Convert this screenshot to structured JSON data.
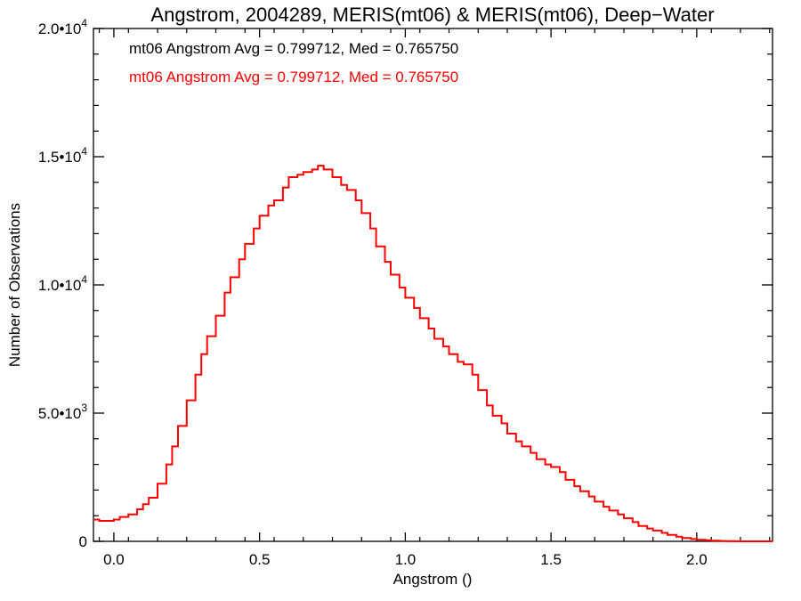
{
  "chart_data": {
    "type": "line",
    "title": "Angstrom, 2004289, MERIS(mt06) & MERIS(mt06), Deep−Water",
    "xlabel": "Angstrom ()",
    "ylabel": "Number of Observations",
    "xlim": [
      -0.07,
      2.26
    ],
    "ylim": [
      0,
      20000
    ],
    "x_ticks": [
      {
        "value": 0.0,
        "label": "0.0"
      },
      {
        "value": 0.5,
        "label": "0.5"
      },
      {
        "value": 1.0,
        "label": "1.0"
      },
      {
        "value": 1.5,
        "label": "1.5"
      },
      {
        "value": 2.0,
        "label": "2.0"
      }
    ],
    "y_ticks": [
      {
        "value": 0,
        "mantissa": "0",
        "exp": ""
      },
      {
        "value": 5000,
        "mantissa": "5.0•10",
        "exp": "3"
      },
      {
        "value": 10000,
        "mantissa": "1.0•10",
        "exp": "4"
      },
      {
        "value": 15000,
        "mantissa": "1.5•10",
        "exp": "4"
      },
      {
        "value": 20000,
        "mantissa": "2.0•10",
        "exp": "4"
      }
    ],
    "annotations": [
      {
        "text": "mt06 Angstrom Avg = 0.799712, Med = 0.765750",
        "color": "#000000"
      },
      {
        "text": "mt06 Angstrom Avg = 0.799712, Med = 0.765750",
        "color": "#ff0000"
      }
    ],
    "series": [
      {
        "style": "histogram-step",
        "color": "#ff0000",
        "points": [
          [
            -0.07,
            850
          ],
          [
            -0.05,
            800
          ],
          [
            0.0,
            850
          ],
          [
            0.02,
            950
          ],
          [
            0.05,
            1050
          ],
          [
            0.08,
            1250
          ],
          [
            0.1,
            1450
          ],
          [
            0.12,
            1700
          ],
          [
            0.15,
            2250
          ],
          [
            0.18,
            3000
          ],
          [
            0.2,
            3700
          ],
          [
            0.22,
            4500
          ],
          [
            0.25,
            5500
          ],
          [
            0.28,
            6500
          ],
          [
            0.3,
            7300
          ],
          [
            0.32,
            8000
          ],
          [
            0.35,
            8800
          ],
          [
            0.38,
            9700
          ],
          [
            0.4,
            10300
          ],
          [
            0.43,
            11000
          ],
          [
            0.45,
            11600
          ],
          [
            0.48,
            12200
          ],
          [
            0.5,
            12700
          ],
          [
            0.53,
            13100
          ],
          [
            0.55,
            13300
          ],
          [
            0.58,
            13800
          ],
          [
            0.6,
            14200
          ],
          [
            0.63,
            14300
          ],
          [
            0.65,
            14400
          ],
          [
            0.68,
            14500
          ],
          [
            0.7,
            14650
          ],
          [
            0.72,
            14500
          ],
          [
            0.75,
            14200
          ],
          [
            0.78,
            13900
          ],
          [
            0.8,
            13700
          ],
          [
            0.83,
            13300
          ],
          [
            0.85,
            12800
          ],
          [
            0.88,
            12200
          ],
          [
            0.9,
            11500
          ],
          [
            0.93,
            10900
          ],
          [
            0.95,
            10400
          ],
          [
            0.98,
            9900
          ],
          [
            1.0,
            9500
          ],
          [
            1.03,
            9100
          ],
          [
            1.05,
            8700
          ],
          [
            1.08,
            8300
          ],
          [
            1.1,
            7900
          ],
          [
            1.13,
            7600
          ],
          [
            1.15,
            7300
          ],
          [
            1.18,
            7000
          ],
          [
            1.2,
            6900
          ],
          [
            1.23,
            6500
          ],
          [
            1.25,
            5900
          ],
          [
            1.28,
            5300
          ],
          [
            1.3,
            4900
          ],
          [
            1.33,
            4600
          ],
          [
            1.35,
            4200
          ],
          [
            1.38,
            3900
          ],
          [
            1.4,
            3700
          ],
          [
            1.43,
            3450
          ],
          [
            1.45,
            3200
          ],
          [
            1.48,
            3000
          ],
          [
            1.5,
            2900
          ],
          [
            1.53,
            2700
          ],
          [
            1.55,
            2400
          ],
          [
            1.58,
            2150
          ],
          [
            1.6,
            1950
          ],
          [
            1.63,
            1750
          ],
          [
            1.65,
            1550
          ],
          [
            1.68,
            1350
          ],
          [
            1.7,
            1200
          ],
          [
            1.73,
            1050
          ],
          [
            1.75,
            900
          ],
          [
            1.78,
            750
          ],
          [
            1.8,
            600
          ],
          [
            1.83,
            500
          ],
          [
            1.85,
            420
          ],
          [
            1.88,
            330
          ],
          [
            1.9,
            250
          ],
          [
            1.93,
            180
          ],
          [
            1.95,
            130
          ],
          [
            1.98,
            90
          ],
          [
            2.0,
            60
          ],
          [
            2.03,
            40
          ],
          [
            2.05,
            25
          ],
          [
            2.08,
            15
          ],
          [
            2.1,
            10
          ],
          [
            2.13,
            5
          ],
          [
            2.15,
            0
          ],
          [
            2.26,
            0
          ]
        ]
      }
    ]
  }
}
